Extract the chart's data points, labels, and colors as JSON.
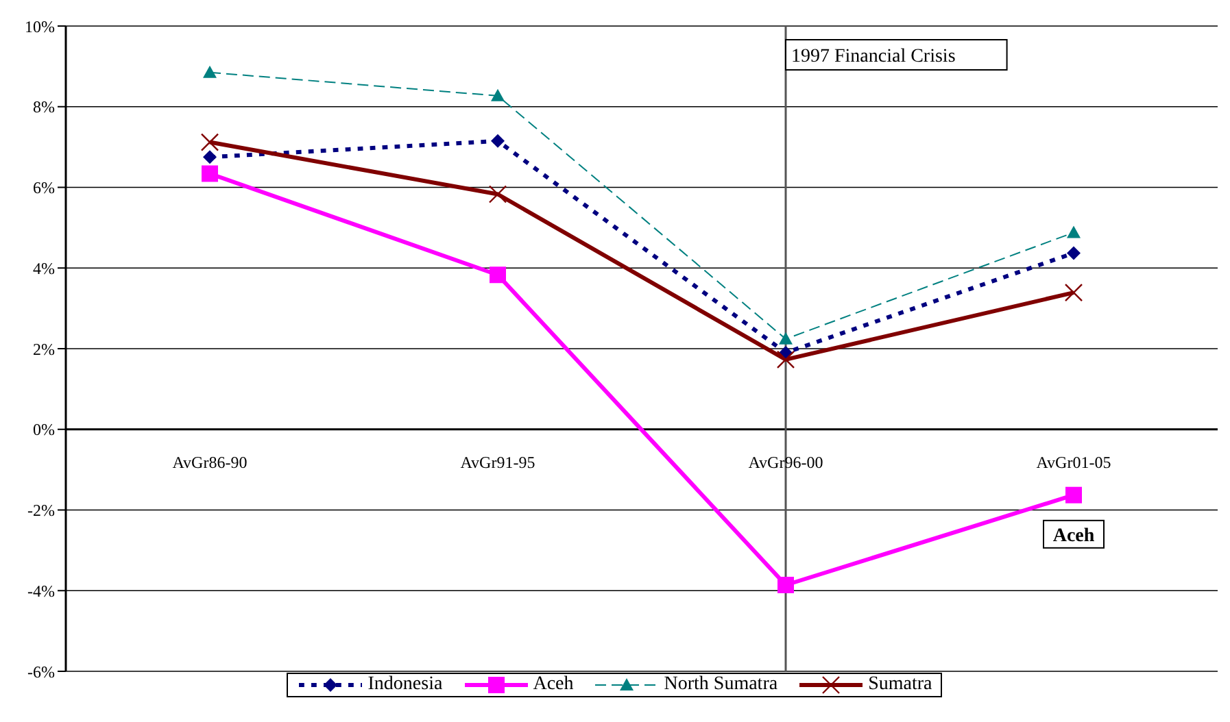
{
  "chart_data": {
    "type": "line",
    "categories": [
      "AvGr86-90",
      "AvGr91-95",
      "AvGr96-00",
      "AvGr01-05"
    ],
    "series": [
      {
        "name": "Indonesia",
        "color": "#000080",
        "values": [
          6.75,
          7.15,
          1.9,
          4.37
        ],
        "marker": "diamond",
        "line_style": "dotted"
      },
      {
        "name": "Aceh",
        "color": "#ff00ff",
        "values": [
          6.34,
          3.83,
          -3.86,
          -1.63
        ],
        "marker": "square",
        "line_style": "solid"
      },
      {
        "name": "North Sumatra",
        "color": "#008080",
        "values": [
          8.85,
          8.27,
          2.24,
          4.88
        ],
        "marker": "triangle",
        "line_style": "dashed"
      },
      {
        "name": "Sumatra",
        "color": "#800000",
        "values": [
          7.12,
          5.83,
          1.73,
          3.39
        ],
        "marker": "cross",
        "line_style": "solid"
      }
    ],
    "ylim": [
      -6,
      10
    ],
    "yticks": [
      {
        "value": -6,
        "label": "-6%"
      },
      {
        "value": -4,
        "label": "-4%"
      },
      {
        "value": -2,
        "label": "-2%"
      },
      {
        "value": 0,
        "label": "0%"
      },
      {
        "value": 2,
        "label": "2%"
      },
      {
        "value": 4,
        "label": "4%"
      },
      {
        "value": 6,
        "label": "6%"
      },
      {
        "value": 8,
        "label": "8%"
      },
      {
        "value": 10,
        "label": "10%"
      }
    ],
    "grid": "y",
    "legend": "bottom",
    "ref_lines": [
      {
        "axis": "x",
        "value": "AvGr96-00",
        "label": "1997 Financial Crisis",
        "color": "#555555"
      }
    ],
    "annotations": [
      {
        "text": "Aceh",
        "x": "AvGr01-05",
        "y": -2.6
      }
    ]
  }
}
